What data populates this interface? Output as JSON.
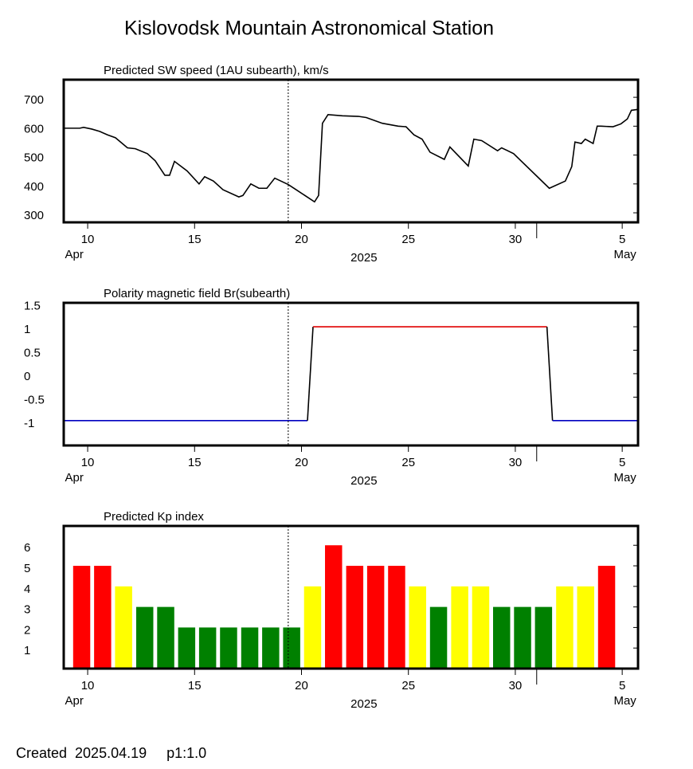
{
  "title": "Kislovodsk Mountain Astronomical Station",
  "footer": "Created  2025.04.19     p1:1.0",
  "chart_data": [
    {
      "type": "line",
      "title": "Predicted SW speed (1AU subearth), km/s",
      "color": "#000000",
      "x": [
        8.88,
        9.63,
        9.81,
        10.19,
        10.56,
        10.93,
        11.3,
        11.86,
        12.23,
        12.79,
        13.16,
        13.61,
        13.83,
        14.06,
        14.65,
        15.21,
        15.47,
        15.88,
        16.33,
        17.07,
        17.26,
        17.63,
        18.01,
        18.38,
        18.75,
        19.38,
        19.75,
        20.61,
        20.8,
        20.98,
        21.24,
        21.91,
        22.66,
        23.03,
        23.78,
        24.52,
        24.89,
        25.26,
        25.64,
        26.01,
        26.68,
        26.94,
        27.8,
        28.06,
        28.43,
        29.17,
        29.36,
        29.92,
        31.59,
        32.34,
        32.64,
        32.79,
        33.09,
        33.27,
        33.64,
        33.83,
        34.01,
        34.57,
        34.94,
        35.24,
        35.43,
        35.73
      ],
      "values": [
        593,
        593,
        596,
        590,
        582,
        570,
        560,
        525,
        522,
        505,
        480,
        430,
        430,
        478,
        445,
        400,
        425,
        410,
        380,
        355,
        360,
        400,
        385,
        385,
        420,
        398,
        380,
        338,
        360,
        610,
        640,
        636,
        634,
        630,
        610,
        600,
        598,
        570,
        555,
        510,
        485,
        528,
        462,
        555,
        550,
        515,
        525,
        505,
        385,
        410,
        460,
        545,
        540,
        555,
        540,
        600,
        600,
        598,
        608,
        625,
        655,
        658
      ],
      "xlim": [
        8.88,
        35.74
      ],
      "xticks": [
        10,
        15,
        20,
        25,
        30,
        {
          "value": 35,
          "label": "5"
        }
      ],
      "month_ticks": [
        {
          "value": 9.37,
          "label": "Apr"
        },
        {
          "value": 35.13,
          "label": "May"
        }
      ],
      "month_boundary": 31,
      "year": {
        "value": 22.92,
        "label": "2025"
      },
      "now": 19.38,
      "ylim": [
        267,
        761
      ],
      "yticks": [
        300,
        400,
        500,
        600,
        700
      ]
    },
    {
      "type": "polarity",
      "title": "Polarity magnetic field  Br(subearth)",
      "positive_color": "#e00000",
      "negative_color": "#0000c0",
      "transition_color": "#000000",
      "x": [
        8.88,
        20.28,
        20.54,
        31.48,
        31.74,
        35.73
      ],
      "values": [
        -1,
        -1,
        1,
        1,
        -1,
        -1
      ],
      "xlim": [
        8.88,
        35.74
      ],
      "xticks": [
        10,
        15,
        20,
        25,
        30,
        {
          "value": 35,
          "label": "5"
        }
      ],
      "month_ticks": [
        {
          "value": 9.37,
          "label": "Apr"
        },
        {
          "value": 35.13,
          "label": "May"
        }
      ],
      "month_boundary": 31,
      "year": {
        "value": 22.92,
        "label": "2025"
      },
      "now": 19.38,
      "ylim": [
        -1.53,
        1.51
      ],
      "yticks": [
        1.5,
        1,
        0.5,
        0,
        -0.5,
        -1
      ]
    },
    {
      "type": "bar",
      "title": "Predicted Kp index",
      "bar_width": 0.8,
      "x": [
        9.72,
        10.7,
        11.68,
        12.67,
        13.65,
        14.63,
        15.61,
        16.59,
        17.58,
        18.56,
        19.54,
        20.52,
        21.5,
        22.49,
        23.47,
        24.45,
        25.43,
        26.41,
        27.4,
        28.38,
        29.36,
        30.34,
        31.32,
        32.31,
        33.29,
        34.27
      ],
      "values": [
        5,
        5,
        4,
        3,
        3,
        2,
        2,
        2,
        2,
        2,
        2,
        4,
        6,
        5,
        5,
        5,
        4,
        3,
        4,
        4,
        3,
        3,
        3,
        4,
        4,
        5
      ],
      "colors": [
        "#ff0000",
        "#ff0000",
        "#ffff00",
        "#008000",
        "#008000",
        "#008000",
        "#008000",
        "#008000",
        "#008000",
        "#008000",
        "#008000",
        "#ffff00",
        "#ff0000",
        "#ff0000",
        "#ff0000",
        "#ff0000",
        "#ffff00",
        "#008000",
        "#ffff00",
        "#ffff00",
        "#008000",
        "#008000",
        "#008000",
        "#ffff00",
        "#ffff00",
        "#ff0000"
      ],
      "xlim": [
        8.88,
        35.74
      ],
      "xticks": [
        10,
        15,
        20,
        25,
        30,
        {
          "value": 35,
          "label": "5"
        }
      ],
      "month_ticks": [
        {
          "value": 9.37,
          "label": "Apr"
        },
        {
          "value": 35.13,
          "label": "May"
        }
      ],
      "month_boundary": 31,
      "year": {
        "value": 22.92,
        "label": "2025"
      },
      "now": 19.38,
      "ylim": [
        0,
        6.94
      ],
      "yticks": [
        1,
        2,
        3,
        4,
        5,
        6
      ]
    }
  ]
}
